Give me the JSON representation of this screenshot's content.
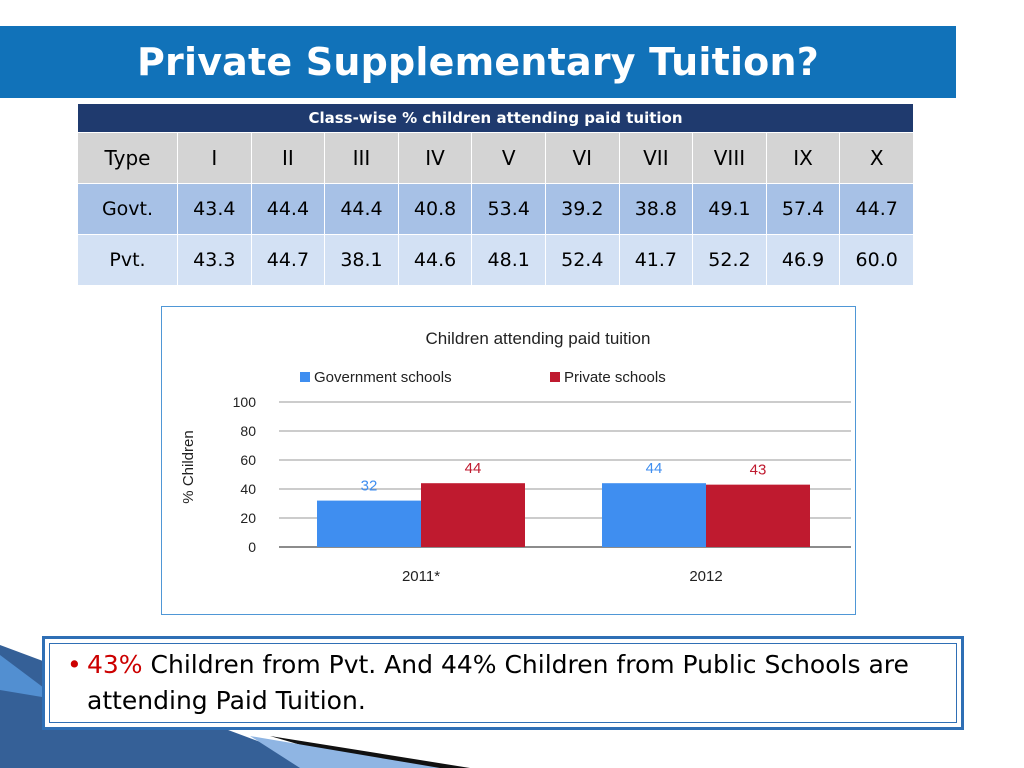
{
  "slide": {
    "title": "Private Supplementary Tuition?"
  },
  "table": {
    "caption": "Class-wise % children attending paid tuition",
    "headers": [
      "Type",
      "I",
      "II",
      "III",
      "IV",
      "V",
      "VI",
      "VII",
      "VIII",
      "IX",
      "X"
    ],
    "rows": [
      [
        "Govt.",
        "43.4",
        "44.4",
        "44.4",
        "40.8",
        "53.4",
        "39.2",
        "38.8",
        "49.1",
        "57.4",
        "44.7"
      ],
      [
        "Pvt.",
        "43.3",
        "44.7",
        "38.1",
        "44.6",
        "48.1",
        "52.4",
        "41.7",
        "52.2",
        "46.9",
        "60.0"
      ]
    ]
  },
  "chart_data": {
    "type": "bar",
    "title": "Children attending paid tuition",
    "categories": [
      "2011*",
      "2012"
    ],
    "series": [
      {
        "name": "Government schools",
        "values": [
          32,
          44
        ],
        "color": "#3f8ef0"
      },
      {
        "name": "Private schools",
        "values": [
          44,
          43
        ],
        "color": "#bf1a2f"
      }
    ],
    "xlabel": "",
    "ylabel": "% Children",
    "ylim": [
      0,
      100
    ],
    "yticks": [
      0,
      20,
      40,
      60,
      80,
      100
    ],
    "grid": true,
    "legend": "top"
  },
  "note": {
    "bullet": "•",
    "highlight": "43%",
    "text": " Children from Pvt. And 44% Children from Public Schools are attending Paid Tuition."
  },
  "colors": {
    "banner": "#1172b9",
    "table_caption": "#1f3a6e",
    "table_header": "#d4d4d4",
    "govt_row": "#a7c1e6",
    "pvt_row": "#d3e1f4",
    "highlight": "#cc0000",
    "frame": "#2f6fb5"
  }
}
